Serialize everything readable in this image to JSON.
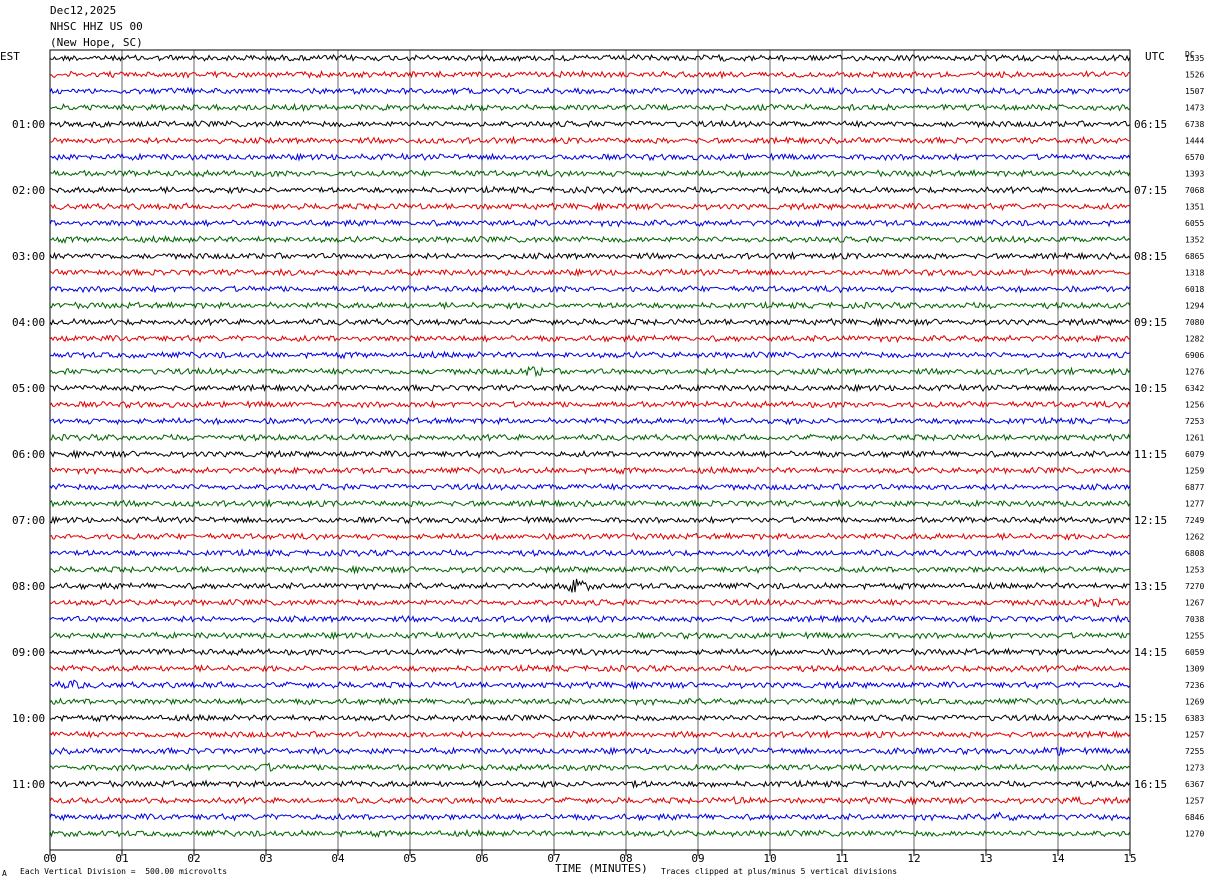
{
  "header": {
    "date": "Dec12,2025",
    "station": "NHSC HHZ US 00",
    "location": "(New Hope, SC)"
  },
  "left_axis_label": "EST",
  "right_axis_label": "UTC",
  "dc_label": "DC",
  "footer": {
    "scale_note": "Each Vertical Division =  500.00 microvolts",
    "clip_note": "Traces clipped at plus/minus 5 vertical divisions",
    "corner_mark": "A"
  },
  "colors": {
    "line1": "#000000",
    "line2": "#e00000",
    "line3": "#0000e0",
    "line4": "#006400",
    "grid": "#000000"
  },
  "chart_data": {
    "type": "line",
    "title": "NHSC HHZ US 00 (New Hope, SC)",
    "xlabel": "TIME (MINUTES)",
    "ylabel": "",
    "xlim": [
      0,
      15
    ],
    "x_ticks": [
      "00",
      "01",
      "02",
      "03",
      "04",
      "05",
      "06",
      "07",
      "08",
      "09",
      "10",
      "11",
      "12",
      "13",
      "14",
      "15"
    ],
    "minutes_per_trace": 15,
    "trace_count": 48,
    "trace_colors": [
      "#000000",
      "#e00000",
      "#0000e0",
      "#006400"
    ],
    "est_labels": [
      "01:00",
      "02:00",
      "03:00",
      "04:00",
      "05:00",
      "06:00",
      "07:00",
      "08:00",
      "09:00",
      "10:00",
      "11:00"
    ],
    "utc_labels": [
      "06:15",
      "07:15",
      "08:15",
      "09:15",
      "10:15",
      "11:15",
      "12:15",
      "13:15",
      "14:15",
      "15:15",
      "16:15"
    ],
    "dc_values": [
      "1535",
      "1526",
      "1507",
      "1473",
      "6738",
      "1444",
      "6570",
      "1393",
      "7068",
      "1351",
      "6055",
      "1352",
      "6865",
      "1318",
      "6018",
      "1294",
      "7080",
      "1282",
      "6906",
      "1276",
      "6342",
      "1256",
      "7253",
      "1261",
      "6079",
      "1259",
      "6877",
      "1277",
      "7249",
      "1262",
      "6808",
      "1253",
      "7270",
      "1267",
      "7038",
      "1255",
      "6059",
      "1309",
      "7236",
      "1269",
      "6383",
      "1257",
      "7255",
      "1273",
      "6367",
      "1257",
      "6846",
      "1270"
    ],
    "events": [
      {
        "trace": 19,
        "minute": 6.7,
        "amplitude": 2.2
      },
      {
        "trace": 32,
        "minute": 7.3,
        "amplitude": 3.2
      },
      {
        "trace": 33,
        "minute": 14.6,
        "amplitude": 2.0
      },
      {
        "trace": 37,
        "minute": 13.2,
        "amplitude": 1.8
      },
      {
        "trace": 38,
        "minute": 0.3,
        "amplitude": 1.8
      },
      {
        "trace": 42,
        "minute": 11.8,
        "amplitude": 1.8
      },
      {
        "trace": 42,
        "minute": 14.0,
        "amplitude": 1.8
      },
      {
        "trace": 43,
        "minute": 3.0,
        "amplitude": 1.7
      },
      {
        "trace": 45,
        "minute": 9.6,
        "amplitude": 1.6
      },
      {
        "trace": 45,
        "minute": 14.3,
        "amplitude": 1.8
      },
      {
        "trace": 46,
        "minute": 13.2,
        "amplitude": 1.7
      },
      {
        "trace": 44,
        "minute": 8.1,
        "amplitude": 1.6
      }
    ]
  }
}
